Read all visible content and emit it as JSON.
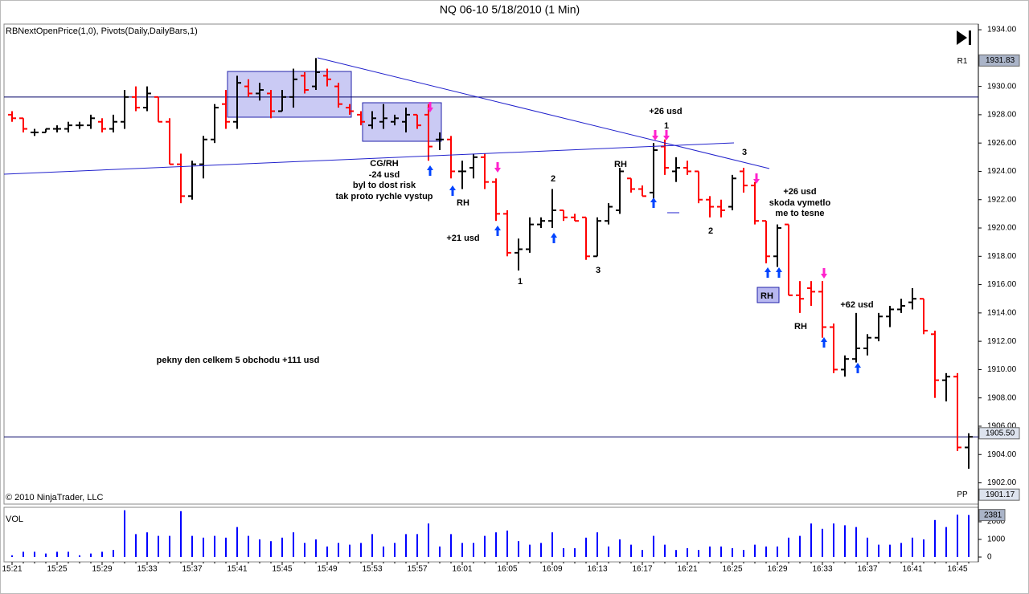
{
  "chart_data": [
    {
      "type": "ohlc",
      "title": "NQ 06-10  5/18/2010 (1 Min)",
      "indicator_label": "RBNextOpenPrice(1,0), Pivots(Daily,DailyBars,1)",
      "copyright": "© 2010 NinjaTrader, LLC",
      "up_color": "#000000",
      "down_color": "#ff0000",
      "open": [
        1928.0,
        1927.75,
        1926.75,
        1926.75,
        1927.0,
        1927.0,
        1927.25,
        1927.25,
        1927.5,
        1927.0,
        1927.5,
        1929.25,
        1928.5,
        1929.25,
        1927.5,
        1924.5,
        1922.25,
        1924.5,
        1926.25,
        1928.75,
        1927.5,
        1930.0,
        1929.5,
        1929.5,
        1928.25,
        1929.25,
        1930.75,
        1930.0,
        1930.75,
        1930.0,
        1928.5,
        1928.0,
        1927.25,
        1927.5,
        1927.5,
        1927.5,
        1928.0,
        1928.0,
        1926.25,
        1926.25,
        1924.0,
        1924.25,
        1925.0,
        1923.25,
        1921.0,
        1918.25,
        1918.5,
        1920.25,
        1920.5,
        1921.25,
        1920.75,
        1920.75,
        1918.0,
        1920.5,
        1921.25,
        1923.5,
        1922.75,
        1922.5,
        1925.75,
        1924.0,
        1924.25,
        1924.0,
        1922.0,
        1921.5,
        1921.5,
        1924.0,
        1923.0,
        1920.5,
        1918.0,
        1920.25,
        1915.25,
        1915.75,
        1915.5,
        1913.0,
        1910.0,
        1910.75,
        1911.5,
        1912.25,
        1913.75,
        1914.25,
        1914.75,
        1915.0,
        1912.5,
        1909.25,
        1909.5,
        1904.5
      ],
      "high": [
        1928.25,
        1927.75,
        1927.0,
        1927.0,
        1927.25,
        1927.5,
        1927.5,
        1928.0,
        1927.75,
        1928.0,
        1929.75,
        1930.0,
        1930.0,
        1929.25,
        1927.75,
        1925.25,
        1924.75,
        1926.5,
        1928.75,
        1929.75,
        1930.75,
        1930.5,
        1930.25,
        1929.75,
        1929.75,
        1931.25,
        1931.0,
        1932.0,
        1931.25,
        1930.25,
        1928.75,
        1928.25,
        1928.25,
        1928.75,
        1928.0,
        1928.5,
        1928.0,
        1928.75,
        1926.75,
        1926.5,
        1924.75,
        1925.25,
        1925.25,
        1923.5,
        1921.25,
        1919.25,
        1920.75,
        1920.75,
        1922.75,
        1921.25,
        1921.0,
        1920.75,
        1920.75,
        1921.75,
        1924.25,
        1923.5,
        1923.0,
        1926.0,
        1926.25,
        1925.0,
        1924.75,
        1924.0,
        1922.25,
        1922.0,
        1923.75,
        1924.25,
        1923.25,
        1920.5,
        1920.25,
        1920.25,
        1916.25,
        1916.25,
        1916.25,
        1913.25,
        1911.0,
        1914.0,
        1912.5,
        1914.0,
        1914.5,
        1915.0,
        1915.75,
        1915.0,
        1912.75,
        1909.75,
        1909.75,
        1905.5
      ],
      "low": [
        1927.5,
        1926.75,
        1926.5,
        1926.75,
        1926.75,
        1926.75,
        1927.0,
        1927.0,
        1926.75,
        1926.75,
        1927.0,
        1928.25,
        1928.25,
        1927.5,
        1924.5,
        1921.75,
        1922.0,
        1923.5,
        1926.0,
        1927.0,
        1927.0,
        1929.25,
        1929.0,
        1927.75,
        1928.25,
        1928.5,
        1929.5,
        1929.75,
        1930.0,
        1928.5,
        1928.0,
        1927.25,
        1927.0,
        1927.0,
        1927.25,
        1926.75,
        1927.0,
        1924.75,
        1925.5,
        1923.5,
        1922.75,
        1923.5,
        1922.75,
        1920.5,
        1918.0,
        1917.0,
        1918.25,
        1920.0,
        1920.0,
        1920.5,
        1920.5,
        1917.75,
        1918.0,
        1920.25,
        1921.0,
        1922.5,
        1922.25,
        1921.75,
        1923.75,
        1923.25,
        1923.75,
        1921.75,
        1920.75,
        1920.75,
        1921.25,
        1922.5,
        1920.25,
        1917.5,
        1917.25,
        1915.25,
        1914.0,
        1914.5,
        1912.25,
        1909.75,
        1909.5,
        1910.5,
        1911.0,
        1912.0,
        1913.0,
        1914.0,
        1914.25,
        1912.5,
        1908.0,
        1907.75,
        1904.25,
        1903.0
      ],
      "close": [
        1927.75,
        1927.0,
        1926.75,
        1927.0,
        1927.0,
        1927.25,
        1927.25,
        1927.75,
        1927.0,
        1927.5,
        1929.25,
        1928.5,
        1929.5,
        1927.5,
        1924.5,
        1922.25,
        1924.5,
        1926.25,
        1928.5,
        1927.5,
        1930.25,
        1929.5,
        1929.75,
        1928.25,
        1929.25,
        1930.5,
        1929.75,
        1931.0,
        1930.5,
        1928.75,
        1928.25,
        1927.5,
        1927.75,
        1927.75,
        1927.75,
        1928.0,
        1927.25,
        1925.75,
        1926.25,
        1924.0,
        1924.0,
        1925.0,
        1923.25,
        1921.0,
        1918.25,
        1918.5,
        1920.25,
        1920.5,
        1921.25,
        1920.75,
        1920.5,
        1918.0,
        1920.5,
        1921.5,
        1924.0,
        1922.75,
        1922.25,
        1925.5,
        1924.25,
        1924.25,
        1924.0,
        1922.0,
        1921.5,
        1921.25,
        1923.5,
        1923.0,
        1920.5,
        1918.0,
        1920.0,
        1915.25,
        1915.0,
        1915.5,
        1913.0,
        1910.0,
        1910.75,
        1911.5,
        1912.25,
        1913.75,
        1914.25,
        1914.5,
        1915.0,
        1912.75,
        1909.25,
        1909.5,
        1904.5,
        1905.25
      ],
      "ylim": [
        1900.5,
        1934.4
      ],
      "yticks": [
        {
          "value": 1902,
          "label": "1902.00"
        },
        {
          "value": 1904,
          "label": "1904.00"
        },
        {
          "value": 1906,
          "label": "1906.00"
        },
        {
          "value": 1908,
          "label": "1908.00"
        },
        {
          "value": 1910,
          "label": "1910.00"
        },
        {
          "value": 1912,
          "label": "1912.00"
        },
        {
          "value": 1914,
          "label": "1914.00"
        },
        {
          "value": 1916,
          "label": "1916.00"
        },
        {
          "value": 1918,
          "label": "1918.00"
        },
        {
          "value": 1920,
          "label": "1920.00"
        },
        {
          "value": 1922,
          "label": "1922.00"
        },
        {
          "value": 1924,
          "label": "1924.00"
        },
        {
          "value": 1926,
          "label": "1926.00"
        },
        {
          "value": 1928,
          "label": "1928.00"
        },
        {
          "value": 1930,
          "label": "1930.00"
        },
        {
          "value": 1932,
          "label": "1932.00"
        },
        {
          "value": 1934,
          "label": "1934.00"
        }
      ],
      "hlines": [
        1929.25,
        1905.25
      ],
      "price_markers": [
        1931.83,
        {
          "value": 1905.5,
          "label": "1905.50"
        },
        1901.17
      ],
      "marker_names": [
        "R1",
        null,
        "PP"
      ],
      "annotations": [
        "CG/RH",
        "-24 usd",
        "byl to dost risk",
        "tak proto rychle vystup",
        "RH",
        "+21 usd",
        "1",
        "2",
        "3",
        "RH",
        "+26 usd",
        "1",
        "3",
        "2",
        "+26 usd",
        "skoda vymetlo",
        "me to tesne",
        "RH",
        "RH",
        "+62 usd",
        "pekny den celkem 5 obchodu +111 usd"
      ]
    },
    {
      "type": "bar",
      "title": "VOL",
      "color": "#0000ff",
      "categories": [
        "15:21",
        null,
        null,
        null,
        "15:25",
        null,
        null,
        null,
        "15:29",
        null,
        null,
        null,
        "15:33",
        null,
        null,
        null,
        "15:37",
        null,
        null,
        null,
        "15:41",
        null,
        null,
        null,
        "15:45",
        null,
        null,
        null,
        "15:49",
        null,
        null,
        null,
        "15:53",
        null,
        null,
        null,
        "15:57",
        null,
        null,
        null,
        "16:01",
        null,
        null,
        null,
        "16:05",
        null,
        null,
        null,
        "16:09",
        null,
        null,
        null,
        "16:13",
        null,
        null,
        null,
        "16:17",
        null,
        null,
        null,
        "16:21",
        null,
        null,
        null,
        "16:25",
        null,
        null,
        null,
        "16:29",
        null,
        null,
        null,
        "16:33",
        null,
        null,
        null,
        "16:37",
        null,
        null,
        null,
        "16:41",
        null,
        null,
        null,
        "16:45",
        null
      ],
      "values": [
        100,
        300,
        300,
        200,
        300,
        300,
        100,
        200,
        300,
        400,
        2650,
        1300,
        1400,
        1200,
        1200,
        2600,
        1200,
        1100,
        1200,
        1100,
        1700,
        1200,
        1000,
        900,
        1100,
        1400,
        800,
        1000,
        600,
        800,
        700,
        800,
        1300,
        600,
        800,
        1300,
        1300,
        1900,
        600,
        1300,
        800,
        800,
        1200,
        1400,
        1500,
        900,
        700,
        800,
        1400,
        500,
        500,
        1100,
        1400,
        600,
        1000,
        700,
        400,
        1200,
        700,
        400,
        500,
        400,
        600,
        600,
        500,
        400,
        700,
        600,
        600,
        1100,
        1200,
        1900,
        1600,
        1900,
        1800,
        1700,
        1100,
        700,
        700,
        800,
        1100,
        1000,
        2100,
        1700,
        2400,
        2381
      ],
      "ylim": [
        0,
        2800
      ],
      "yticks": [
        0,
        1000,
        2000
      ],
      "markers": [
        2381
      ]
    }
  ]
}
